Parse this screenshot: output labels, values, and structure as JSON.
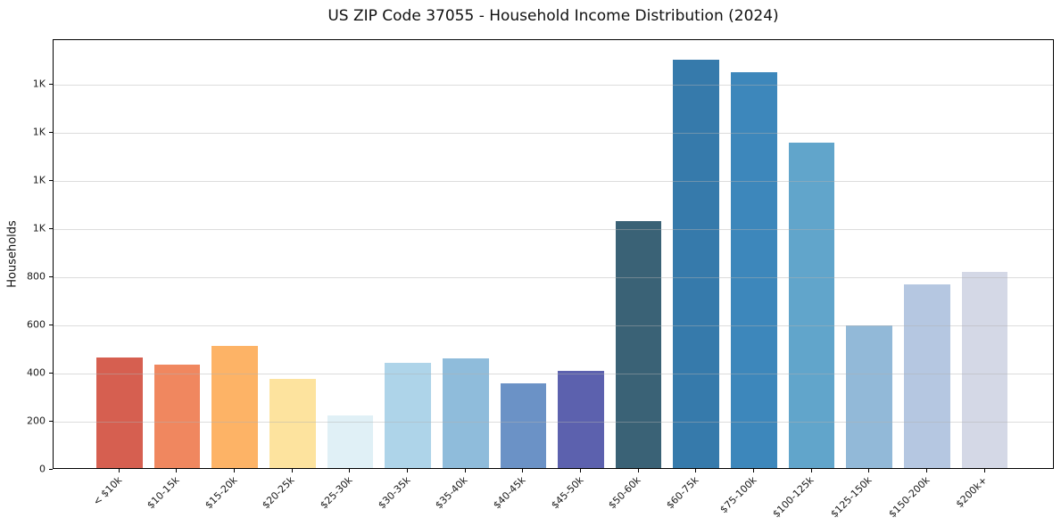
{
  "chart_data": {
    "type": "bar",
    "title": "US ZIP Code 37055 - Household Income Distribution (2024)",
    "xlabel": "",
    "ylabel": "Households",
    "categories": [
      "< $10k",
      "$10-15k",
      "$15-20k",
      "$20-25k",
      "$25-30k",
      "$30-35k",
      "$35-40k",
      "$40-45k",
      "$45-50k",
      "$50-60k",
      "$60-75k",
      "$75-100k",
      "$100-125k",
      "$125-150k",
      "$150-200k",
      "$200k+"
    ],
    "values": [
      460,
      430,
      507,
      371,
      218,
      436,
      456,
      351,
      404,
      1025,
      1698,
      1646,
      1353,
      592,
      763,
      815
    ],
    "bar_colors": [
      "#d65f50",
      "#f0875f",
      "#fdb366",
      "#fde39e",
      "#e0f0f6",
      "#aed4e9",
      "#8fbcdb",
      "#6b92c6",
      "#5c61ae",
      "#3a6276",
      "#367aab",
      "#3d87bb",
      "#61a5cb",
      "#92b9d8",
      "#b5c7e1",
      "#d4d8e6"
    ],
    "ylim": [
      0,
      1786
    ],
    "yticks": [
      {
        "value": 0,
        "label": "0"
      },
      {
        "value": 200,
        "label": "200"
      },
      {
        "value": 400,
        "label": "400"
      },
      {
        "value": 600,
        "label": "600"
      },
      {
        "value": 800,
        "label": "800"
      },
      {
        "value": 1000,
        "label": "1K"
      },
      {
        "value": 1200,
        "label": "1K"
      },
      {
        "value": 1400,
        "label": "1K"
      },
      {
        "value": 1600,
        "label": "1K"
      }
    ],
    "grid": "horizontal",
    "grid_over_bars": true,
    "legend": "none",
    "background_color": "#ffffff",
    "gridline_color": "rgba(178,178,178,0.45)",
    "spine_color": "#000000",
    "tick_label_color": "#1a1a1a",
    "x_tick_rotation_deg": 45
  }
}
